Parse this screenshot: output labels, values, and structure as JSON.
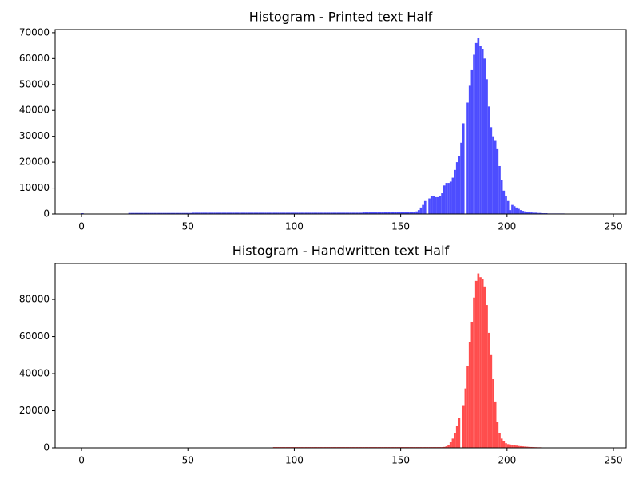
{
  "chart_data": [
    {
      "type": "histogram",
      "title": "Histogram - Printed text Half",
      "color": "#4d4dff",
      "xlim": [
        -12.4,
        256
      ],
      "ylim": [
        0,
        71200
      ],
      "xticks": [
        0,
        50,
        100,
        150,
        200,
        250
      ],
      "yticks": [
        0,
        10000,
        20000,
        30000,
        40000,
        50000,
        60000,
        70000
      ],
      "bins": [
        0,
        1,
        2,
        3,
        4,
        5,
        6,
        7,
        8,
        9,
        10,
        11,
        12,
        13,
        14,
        15,
        16,
        17,
        18,
        19,
        20,
        21,
        22,
        23,
        24,
        25,
        26,
        27,
        28,
        29,
        30,
        31,
        32,
        33,
        34,
        35,
        36,
        37,
        38,
        39,
        40,
        41,
        42,
        43,
        44,
        45,
        46,
        47,
        48,
        49,
        50,
        51,
        52,
        53,
        54,
        55,
        56,
        57,
        58,
        59,
        60,
        61,
        62,
        63,
        64,
        65,
        66,
        67,
        68,
        69,
        70,
        71,
        72,
        73,
        74,
        75,
        76,
        77,
        78,
        79,
        80,
        81,
        82,
        83,
        84,
        85,
        86,
        87,
        88,
        89,
        90,
        91,
        92,
        93,
        94,
        95,
        96,
        97,
        98,
        99,
        100,
        101,
        102,
        103,
        104,
        105,
        106,
        107,
        108,
        109,
        110,
        111,
        112,
        113,
        114,
        115,
        116,
        117,
        118,
        119,
        120,
        121,
        122,
        123,
        124,
        125,
        126,
        127,
        128,
        129,
        130,
        131,
        132,
        133,
        134,
        135,
        136,
        137,
        138,
        139,
        140,
        141,
        142,
        143,
        144,
        145,
        146,
        147,
        148,
        149,
        150,
        151,
        152,
        153,
        154,
        155,
        156,
        157,
        158,
        159,
        160,
        161,
        162,
        163,
        164,
        165,
        166,
        167,
        168,
        169,
        170,
        171,
        172,
        173,
        174,
        175,
        176,
        177,
        178,
        179,
        180,
        181,
        182,
        183,
        184,
        185,
        186,
        187,
        188,
        189,
        190,
        191,
        192,
        193,
        194,
        195,
        196,
        197,
        198,
        199,
        200,
        201,
        202,
        203,
        204,
        205,
        206,
        207,
        208,
        209,
        210,
        211,
        212,
        213,
        214,
        215,
        216,
        217,
        218,
        219,
        220,
        221,
        222,
        223,
        224,
        225,
        226,
        227,
        228,
        229
      ],
      "counts": [
        300,
        0,
        0,
        0,
        0,
        0,
        0,
        0,
        0,
        0,
        0,
        0,
        0,
        0,
        0,
        0,
        0,
        0,
        0,
        0,
        0,
        0,
        400,
        400,
        400,
        400,
        400,
        400,
        400,
        400,
        400,
        400,
        400,
        400,
        400,
        400,
        400,
        400,
        400,
        400,
        400,
        400,
        400,
        400,
        400,
        400,
        400,
        400,
        400,
        400,
        400,
        400,
        500,
        500,
        500,
        500,
        500,
        500,
        500,
        500,
        500,
        500,
        500,
        500,
        500,
        500,
        500,
        500,
        500,
        500,
        500,
        500,
        500,
        500,
        500,
        500,
        500,
        500,
        500,
        500,
        500,
        500,
        500,
        500,
        500,
        500,
        500,
        500,
        500,
        500,
        500,
        500,
        500,
        500,
        500,
        500,
        500,
        500,
        500,
        500,
        500,
        500,
        500,
        500,
        500,
        500,
        500,
        500,
        500,
        500,
        500,
        500,
        500,
        500,
        500,
        500,
        500,
        500,
        500,
        500,
        500,
        500,
        500,
        500,
        500,
        500,
        500,
        500,
        500,
        500,
        500,
        500,
        600,
        600,
        600,
        600,
        600,
        600,
        600,
        600,
        600,
        600,
        700,
        700,
        700,
        700,
        700,
        700,
        700,
        700,
        700,
        700,
        700,
        700,
        700,
        800,
        900,
        1000,
        1500,
        2500,
        3500,
        5000,
        0,
        6000,
        7000,
        7000,
        6500,
        6500,
        7000,
        8000,
        11000,
        12000,
        12000,
        12500,
        14000,
        17000,
        20000,
        22500,
        27500,
        35000,
        0,
        43000,
        49500,
        55500,
        61500,
        66000,
        68000,
        65000,
        63500,
        60000,
        52000,
        41500,
        33500,
        30000,
        28500,
        25000,
        18500,
        13000,
        9000,
        7000,
        5000,
        1500,
        3500,
        3000,
        2500,
        2000,
        1500,
        1200,
        1000,
        800,
        700,
        600,
        500,
        500,
        400,
        400,
        300,
        300,
        300,
        200,
        200,
        200,
        200,
        200,
        200,
        200,
        200,
        100,
        100
      ]
    },
    {
      "type": "histogram",
      "title": "Histogram - Handwritten text Half",
      "color": "#ff4d4d",
      "xlim": [
        -12.4,
        256
      ],
      "ylim": [
        0,
        99400
      ],
      "xticks": [
        0,
        50,
        100,
        150,
        200,
        250
      ],
      "yticks": [
        0,
        20000,
        40000,
        60000,
        80000
      ],
      "bins": [
        0,
        1,
        2,
        3,
        4,
        5,
        6,
        7,
        8,
        9,
        10,
        11,
        12,
        13,
        14,
        15,
        16,
        17,
        18,
        19,
        20,
        21,
        22,
        23,
        24,
        25,
        26,
        27,
        28,
        29,
        30,
        31,
        32,
        33,
        34,
        35,
        36,
        37,
        38,
        39,
        40,
        41,
        42,
        43,
        44,
        45,
        46,
        47,
        48,
        49,
        50,
        51,
        52,
        53,
        54,
        55,
        56,
        57,
        58,
        59,
        60,
        61,
        62,
        63,
        64,
        65,
        66,
        67,
        68,
        69,
        70,
        71,
        72,
        73,
        74,
        75,
        76,
        77,
        78,
        79,
        80,
        81,
        82,
        83,
        84,
        85,
        86,
        87,
        88,
        89,
        90,
        91,
        92,
        93,
        94,
        95,
        96,
        97,
        98,
        99,
        100,
        101,
        102,
        103,
        104,
        105,
        106,
        107,
        108,
        109,
        110,
        111,
        112,
        113,
        114,
        115,
        116,
        117,
        118,
        119,
        120,
        121,
        122,
        123,
        124,
        125,
        126,
        127,
        128,
        129,
        130,
        131,
        132,
        133,
        134,
        135,
        136,
        137,
        138,
        139,
        140,
        141,
        142,
        143,
        144,
        145,
        146,
        147,
        148,
        149,
        150,
        151,
        152,
        153,
        154,
        155,
        156,
        157,
        158,
        159,
        160,
        161,
        162,
        163,
        164,
        165,
        166,
        167,
        168,
        169,
        170,
        171,
        172,
        173,
        174,
        175,
        176,
        177,
        178,
        179,
        180,
        181,
        182,
        183,
        184,
        185,
        186,
        187,
        188,
        189,
        190,
        191,
        192,
        193,
        194,
        195,
        196,
        197,
        198,
        199,
        200,
        201,
        202,
        203,
        204,
        205,
        206,
        207,
        208,
        209,
        210,
        211,
        212,
        213,
        214,
        215,
        216
      ],
      "counts": [
        200,
        0,
        0,
        0,
        0,
        0,
        0,
        0,
        0,
        0,
        0,
        0,
        0,
        0,
        0,
        0,
        0,
        0,
        0,
        0,
        0,
        0,
        0,
        0,
        0,
        0,
        0,
        0,
        0,
        0,
        0,
        0,
        0,
        0,
        0,
        0,
        0,
        0,
        0,
        0,
        0,
        0,
        0,
        0,
        0,
        0,
        0,
        0,
        0,
        0,
        0,
        0,
        0,
        0,
        0,
        0,
        0,
        0,
        0,
        0,
        0,
        0,
        0,
        0,
        0,
        0,
        0,
        0,
        0,
        0,
        0,
        0,
        0,
        0,
        0,
        0,
        0,
        0,
        0,
        0,
        0,
        0,
        0,
        0,
        0,
        0,
        0,
        0,
        0,
        0,
        400,
        400,
        400,
        400,
        400,
        400,
        400,
        400,
        400,
        400,
        400,
        400,
        400,
        400,
        400,
        400,
        400,
        400,
        400,
        400,
        400,
        400,
        400,
        400,
        400,
        400,
        400,
        400,
        400,
        400,
        400,
        400,
        400,
        400,
        400,
        400,
        400,
        400,
        400,
        400,
        400,
        400,
        400,
        400,
        400,
        400,
        400,
        400,
        400,
        400,
        400,
        400,
        400,
        400,
        400,
        400,
        400,
        400,
        400,
        400,
        400,
        400,
        400,
        400,
        400,
        400,
        400,
        400,
        400,
        400,
        400,
        400,
        400,
        400,
        400,
        400,
        400,
        400,
        400,
        400,
        500,
        800,
        1500,
        3000,
        5000,
        8000,
        12000,
        16000,
        0,
        23000,
        32000,
        44000,
        57000,
        68000,
        81000,
        90000,
        94000,
        92000,
        91000,
        87000,
        77000,
        62000,
        50000,
        37000,
        25000,
        14000,
        8000,
        5000,
        3500,
        2500,
        2000,
        1800,
        1600,
        1400,
        1200,
        1000,
        900,
        800,
        700,
        600,
        500,
        450,
        400,
        350,
        300,
        300
      ]
    }
  ]
}
